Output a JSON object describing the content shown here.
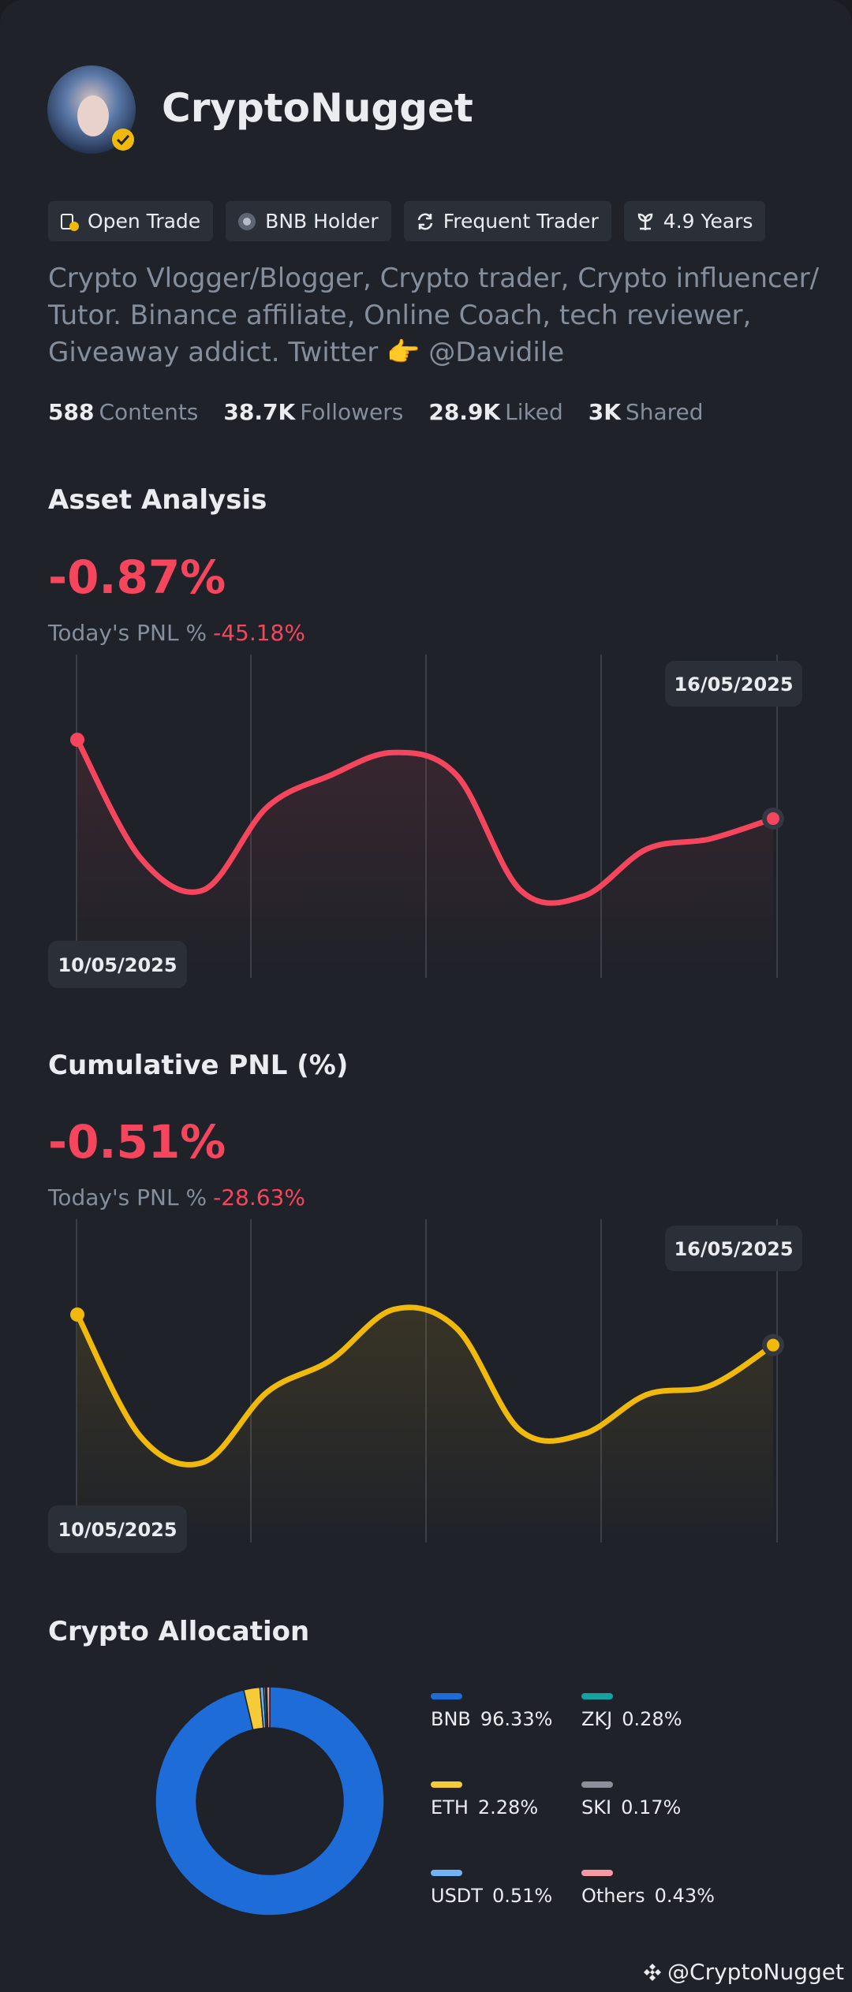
{
  "profile": {
    "name": "CryptoNugget",
    "tags": [
      "Open Trade",
      "BNB Holder",
      "Frequent Trader",
      "4.9 Years"
    ],
    "bio": "Crypto Vlogger/Blogger, Crypto trader, Crypto influencer/ Tutor. Binance affiliate, Online Coach, tech reviewer, Giveaway addict. Twitter 👉 @Davidile",
    "stats": [
      {
        "value": "588",
        "label": "Contents"
      },
      {
        "value": "38.7K",
        "label": "Followers"
      },
      {
        "value": "28.9K",
        "label": "Liked"
      },
      {
        "value": "3K",
        "label": "Shared"
      }
    ]
  },
  "asset_analysis": {
    "title": "Asset Analysis",
    "value": "-0.87%",
    "pnl_label": "Today's PNL %",
    "pnl_value": "-45.18%",
    "start_date": "10/05/2025",
    "end_date": "16/05/2025",
    "color": "#f6465d",
    "ylim": [
      0,
      240
    ],
    "values": [
      186,
      93,
      68,
      133,
      158,
      176,
      158,
      68,
      63,
      100,
      108,
      124
    ]
  },
  "cumulative_pnl": {
    "title": "Cumulative PNL (%)",
    "value": "-0.51%",
    "pnl_label": "Today's PNL %",
    "pnl_value": "-28.63%",
    "start_date": "10/05/2025",
    "end_date": "16/05/2025",
    "color": "#f0b90b",
    "ylim": [
      0,
      240
    ],
    "values": [
      178,
      82,
      62,
      117,
      142,
      182,
      167,
      87,
      84,
      115,
      122,
      154
    ]
  },
  "allocation": {
    "title": "Crypto Allocation",
    "labels": [
      "BNB",
      "ETH",
      "USDT",
      "ZKJ",
      "SKI",
      "Others"
    ],
    "values": [
      96.33,
      2.28,
      0.51,
      0.28,
      0.17,
      0.43
    ],
    "value_labels": [
      "96.33%",
      "2.28%",
      "0.51%",
      "0.28%",
      "0.17%",
      "0.43%"
    ],
    "colors": [
      "#1e6cd8",
      "#f5cc38",
      "#6fb3f5",
      "#14a3a3",
      "#8a8f99",
      "#f59aa5"
    ]
  },
  "footer": "@CryptoNugget"
}
